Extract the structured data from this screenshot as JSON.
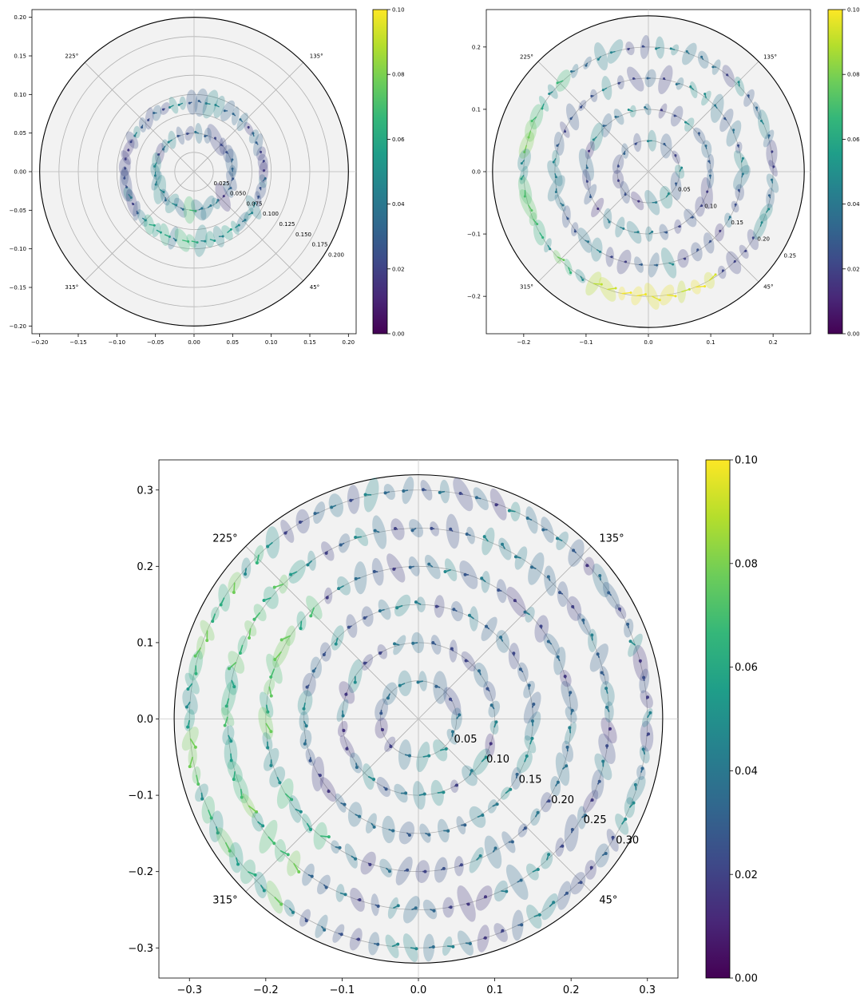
{
  "chart_data": [
    {
      "type": "scatter",
      "subtype": "polar quiver with uncertainty ellipses",
      "title": "",
      "xlabel": "",
      "ylabel": "",
      "xlim": [
        -0.21,
        0.21
      ],
      "ylim": [
        -0.21,
        0.21
      ],
      "xticks": [
        "−0.20",
        "−0.15",
        "−0.10",
        "−0.05",
        "0.00",
        "0.05",
        "0.10",
        "0.15",
        "0.20"
      ],
      "yticks": [
        "−0.20",
        "−0.15",
        "−0.10",
        "−0.05",
        "0.00",
        "0.05",
        "0.10",
        "0.15",
        "0.20"
      ],
      "rticks": [
        "0.025",
        "0.050",
        "0.075",
        "0.100",
        "0.125",
        "0.150",
        "0.175",
        "0.200"
      ],
      "angle_labels": [
        "135°",
        "225°",
        "315°",
        "45°"
      ],
      "rmax": 0.2,
      "rings": [
        0.05,
        0.09
      ],
      "colorbar": {
        "min": 0.0,
        "max": 0.1,
        "ticks": [
          "0.00",
          "0.02",
          "0.04",
          "0.06",
          "0.08",
          "0.10"
        ],
        "colormap": "viridis"
      },
      "grid": true
    },
    {
      "type": "scatter",
      "subtype": "polar quiver with uncertainty ellipses",
      "title": "",
      "xlabel": "",
      "ylabel": "",
      "xlim": [
        -0.26,
        0.26
      ],
      "ylim": [
        -0.26,
        0.26
      ],
      "xticks": [
        "−0.2",
        "−0.1",
        "0.0",
        "0.1",
        "0.2"
      ],
      "yticks": [
        "−0.2",
        "−0.1",
        "0.0",
        "0.1",
        "0.2"
      ],
      "rticks": [
        "0.05",
        "0.10",
        "0.15",
        "0.20",
        "0.25"
      ],
      "angle_labels": [
        "135°",
        "225°",
        "315°",
        "45°"
      ],
      "rmax": 0.25,
      "rings": [
        0.05,
        0.1,
        0.15,
        0.2
      ],
      "colorbar": {
        "min": 0.0,
        "max": 0.1,
        "ticks": [
          "0.00",
          "0.02",
          "0.04",
          "0.06",
          "0.08",
          "0.10"
        ],
        "colormap": "viridis"
      },
      "grid": true
    },
    {
      "type": "scatter",
      "subtype": "polar quiver with uncertainty ellipses",
      "title": "",
      "xlabel": "",
      "ylabel": "",
      "xlim": [
        -0.34,
        0.34
      ],
      "ylim": [
        -0.34,
        0.34
      ],
      "xticks": [
        "−0.3",
        "−0.2",
        "−0.1",
        "0.0",
        "0.1",
        "0.2",
        "0.3"
      ],
      "yticks": [
        "−0.3",
        "−0.2",
        "−0.1",
        "0.0",
        "0.1",
        "0.2",
        "0.3"
      ],
      "rticks": [
        "0.05",
        "0.10",
        "0.15",
        "0.20",
        "0.25",
        "0.30"
      ],
      "angle_labels": [
        "135°",
        "225°",
        "315°",
        "45°"
      ],
      "rmax": 0.32,
      "rings": [
        0.05,
        0.1,
        0.15,
        0.2,
        0.25,
        0.3
      ],
      "colorbar": {
        "min": 0.0,
        "max": 0.1,
        "ticks": [
          "0.00",
          "0.02",
          "0.04",
          "0.06",
          "0.08",
          "0.10"
        ],
        "colormap": "viridis"
      },
      "grid": true
    }
  ]
}
